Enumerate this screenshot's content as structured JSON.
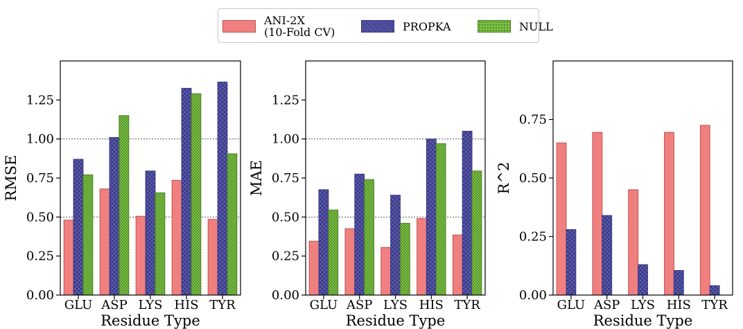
{
  "legend": {
    "items": [
      {
        "label": "ANI-2X\n(10-Fold CV)",
        "color": "#f08080",
        "edge": "#c0504d",
        "pattern": "none"
      },
      {
        "label": "PROPKA",
        "color": "#5a5aaa",
        "edge": "#3a3a88",
        "pattern": "crosshatch"
      },
      {
        "label": "NULL",
        "color": "#6fb13a",
        "edge": "#4a7e22",
        "pattern": "dots"
      }
    ]
  },
  "chart_data": [
    {
      "type": "bar",
      "categories": [
        "GLU",
        "ASP",
        "LYS",
        "HIS",
        "TYR"
      ],
      "series": [
        {
          "name": "ANI-2X\n(10-Fold CV)",
          "values": [
            0.48,
            0.68,
            0.505,
            0.735,
            0.485
          ]
        },
        {
          "name": "PROPKA",
          "values": [
            0.87,
            1.01,
            0.795,
            1.325,
            1.365
          ]
        },
        {
          "name": "NULL",
          "values": [
            0.77,
            1.15,
            0.655,
            1.29,
            0.905
          ]
        }
      ],
      "xlabel": "Residue Type",
      "ylabel": "RMSE",
      "ylim": [
        0,
        1.5
      ],
      "yticks": [
        "0.00",
        "0.25",
        "0.50",
        "0.75",
        "1.00",
        "1.25"
      ],
      "grid": "dotted horizontal at 0.50 and 1.00"
    },
    {
      "type": "bar",
      "categories": [
        "GLU",
        "ASP",
        "LYS",
        "HIS",
        "TYR"
      ],
      "series": [
        {
          "name": "ANI-2X\n(10-Fold CV)",
          "values": [
            0.345,
            0.425,
            0.305,
            0.49,
            0.385
          ]
        },
        {
          "name": "PROPKA",
          "values": [
            0.675,
            0.775,
            0.64,
            1.0,
            1.05
          ]
        },
        {
          "name": "NULL",
          "values": [
            0.545,
            0.74,
            0.46,
            0.97,
            0.795
          ]
        }
      ],
      "xlabel": "Residue Type",
      "ylabel": "MAE",
      "ylim": [
        0,
        1.5
      ],
      "yticks": [
        "0.00",
        "0.25",
        "0.50",
        "0.75",
        "1.00",
        "1.25"
      ],
      "grid": "dotted horizontal at 0.50 and 1.00"
    },
    {
      "type": "bar",
      "categories": [
        "GLU",
        "ASP",
        "LYS",
        "HIS",
        "TYR"
      ],
      "series": [
        {
          "name": "ANI-2X\n(10-Fold CV)",
          "values": [
            0.65,
            0.695,
            0.45,
            0.695,
            0.725
          ]
        },
        {
          "name": "PROPKA",
          "values": [
            0.28,
            0.34,
            0.13,
            0.105,
            0.04
          ]
        }
      ],
      "xlabel": "Residue Type",
      "ylabel": "R^2",
      "ylim": [
        0,
        1.0
      ],
      "yticks": [
        "0.00",
        "0.25",
        "0.50",
        "0.75"
      ],
      "grid": "none"
    }
  ]
}
